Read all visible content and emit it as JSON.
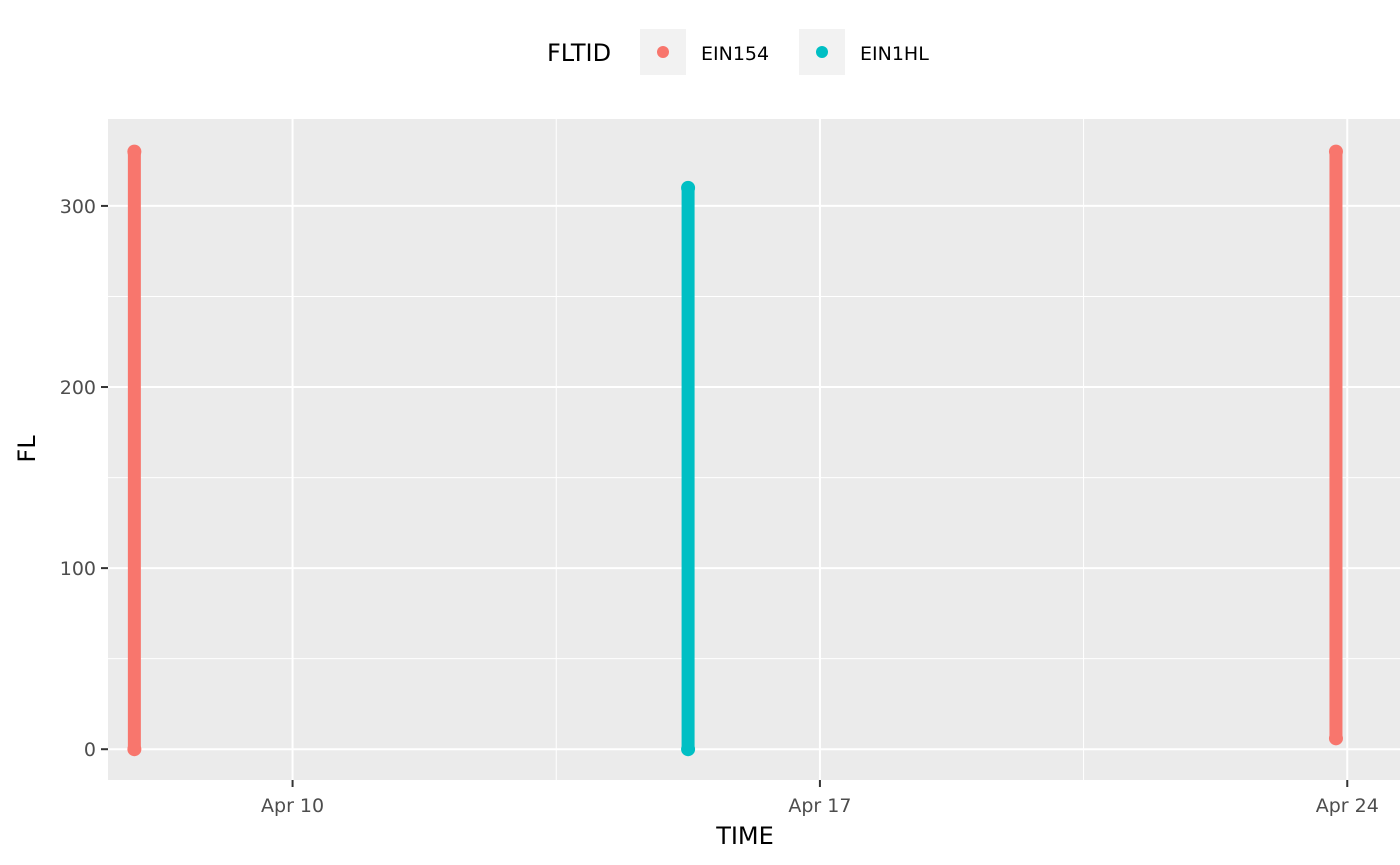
{
  "chart_data": {
    "type": "scatter",
    "xlabel": "TIME",
    "ylabel": "FL",
    "x_ticks": [
      {
        "value": "Apr 10",
        "day": 10
      },
      {
        "value": "Apr 17",
        "day": 17
      },
      {
        "value": "Apr 24",
        "day": 24
      }
    ],
    "x_minor_days": [
      13.5,
      20.5
    ],
    "xlim_days": [
      7.55,
      24.7
    ],
    "y_ticks": [
      0,
      100,
      200,
      300
    ],
    "ylim": [
      -17,
      348
    ],
    "grid": true,
    "panel_color": "#EBEBEB",
    "legend": {
      "title": "FLTID",
      "position": "top"
    },
    "series": [
      {
        "name": "EIN154",
        "color": "#F8766D",
        "segments": [
          {
            "day": 7.9,
            "y_min": 0,
            "y_max": 330
          },
          {
            "day": 23.85,
            "y_min": 6,
            "y_max": 330
          }
        ]
      },
      {
        "name": "EIN1HL",
        "color": "#00BFC4",
        "segments": [
          {
            "day": 15.25,
            "y_min": 0,
            "y_max": 310
          }
        ]
      }
    ]
  }
}
